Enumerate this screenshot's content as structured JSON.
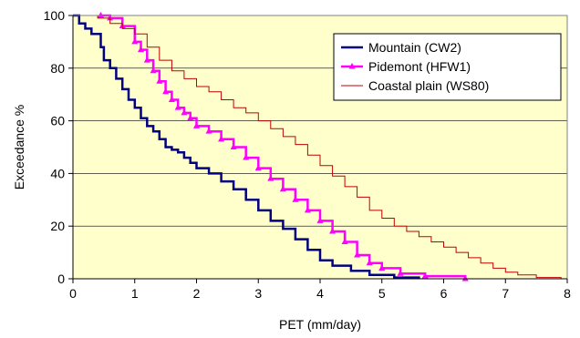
{
  "chart_data": {
    "type": "line",
    "title": "",
    "xlabel": "PET (mm/day)",
    "ylabel": "Exceedance %",
    "xlim": [
      0,
      8
    ],
    "ylim": [
      0,
      100
    ],
    "xticks": [
      "0",
      "1",
      "2",
      "3",
      "4",
      "5",
      "6",
      "7",
      "8"
    ],
    "yticks": [
      "0",
      "20",
      "40",
      "60",
      "80",
      "100"
    ],
    "grid": "horizontal",
    "legend_position": "top-right",
    "plot_background": "#FFFFCC",
    "series": [
      {
        "name": "Mountain (CW2)",
        "color": "#000080",
        "marker": "none",
        "points": [
          [
            0,
            100
          ],
          [
            0.1,
            97
          ],
          [
            0.2,
            95
          ],
          [
            0.3,
            93
          ],
          [
            0.45,
            88
          ],
          [
            0.5,
            83
          ],
          [
            0.6,
            80
          ],
          [
            0.7,
            76
          ],
          [
            0.8,
            72
          ],
          [
            0.9,
            68
          ],
          [
            1.0,
            65
          ],
          [
            1.1,
            61
          ],
          [
            1.2,
            58
          ],
          [
            1.3,
            56
          ],
          [
            1.4,
            53
          ],
          [
            1.5,
            50
          ],
          [
            1.6,
            49
          ],
          [
            1.7,
            48
          ],
          [
            1.8,
            46
          ],
          [
            1.9,
            44
          ],
          [
            2.0,
            42
          ],
          [
            2.2,
            40
          ],
          [
            2.4,
            37
          ],
          [
            2.6,
            34
          ],
          [
            2.8,
            30
          ],
          [
            3.0,
            26
          ],
          [
            3.2,
            22
          ],
          [
            3.4,
            19
          ],
          [
            3.6,
            15
          ],
          [
            3.8,
            11
          ],
          [
            4.0,
            7
          ],
          [
            4.2,
            5
          ],
          [
            4.5,
            3
          ],
          [
            4.8,
            1.5
          ],
          [
            5.2,
            0.5
          ],
          [
            5.6,
            0
          ]
        ]
      },
      {
        "name": "Pidemont (HFW1)",
        "color": "#FF00FF",
        "marker": "triangle",
        "points": [
          [
            0.45,
            100
          ],
          [
            0.6,
            99
          ],
          [
            0.8,
            96
          ],
          [
            1.0,
            90
          ],
          [
            1.1,
            87
          ],
          [
            1.2,
            83
          ],
          [
            1.3,
            79
          ],
          [
            1.4,
            75
          ],
          [
            1.5,
            71
          ],
          [
            1.6,
            68
          ],
          [
            1.7,
            65
          ],
          [
            1.8,
            63
          ],
          [
            1.9,
            61
          ],
          [
            2.0,
            58
          ],
          [
            2.2,
            56
          ],
          [
            2.4,
            53
          ],
          [
            2.6,
            50
          ],
          [
            2.8,
            46
          ],
          [
            3.0,
            42
          ],
          [
            3.2,
            38
          ],
          [
            3.4,
            34
          ],
          [
            3.6,
            30
          ],
          [
            3.8,
            26
          ],
          [
            4.0,
            22
          ],
          [
            4.2,
            18
          ],
          [
            4.4,
            14
          ],
          [
            4.6,
            9
          ],
          [
            4.8,
            6
          ],
          [
            5.0,
            4
          ],
          [
            5.3,
            2
          ],
          [
            5.7,
            1
          ],
          [
            6.35,
            0
          ]
        ]
      },
      {
        "name": "Coastal plain (WS80)",
        "color": "#C00000",
        "marker": "none",
        "points": [
          [
            0,
            100
          ],
          [
            0.4,
            99
          ],
          [
            0.6,
            97
          ],
          [
            0.8,
            95
          ],
          [
            1.0,
            93
          ],
          [
            1.2,
            88
          ],
          [
            1.4,
            83
          ],
          [
            1.6,
            79
          ],
          [
            1.8,
            76
          ],
          [
            2.0,
            73
          ],
          [
            2.2,
            71
          ],
          [
            2.4,
            68
          ],
          [
            2.6,
            65
          ],
          [
            2.8,
            63
          ],
          [
            3.0,
            60
          ],
          [
            3.2,
            57
          ],
          [
            3.4,
            54
          ],
          [
            3.6,
            51
          ],
          [
            3.8,
            47
          ],
          [
            4.0,
            43
          ],
          [
            4.2,
            39
          ],
          [
            4.4,
            35
          ],
          [
            4.6,
            31
          ],
          [
            4.8,
            26
          ],
          [
            5.0,
            23
          ],
          [
            5.2,
            20
          ],
          [
            5.4,
            18
          ],
          [
            5.6,
            16
          ],
          [
            5.8,
            14
          ],
          [
            6.0,
            12
          ],
          [
            6.2,
            10
          ],
          [
            6.4,
            8
          ],
          [
            6.6,
            6
          ],
          [
            6.8,
            4
          ],
          [
            7.0,
            2.5
          ],
          [
            7.2,
            1.5
          ],
          [
            7.5,
            0.5
          ],
          [
            7.9,
            0
          ]
        ]
      }
    ]
  }
}
